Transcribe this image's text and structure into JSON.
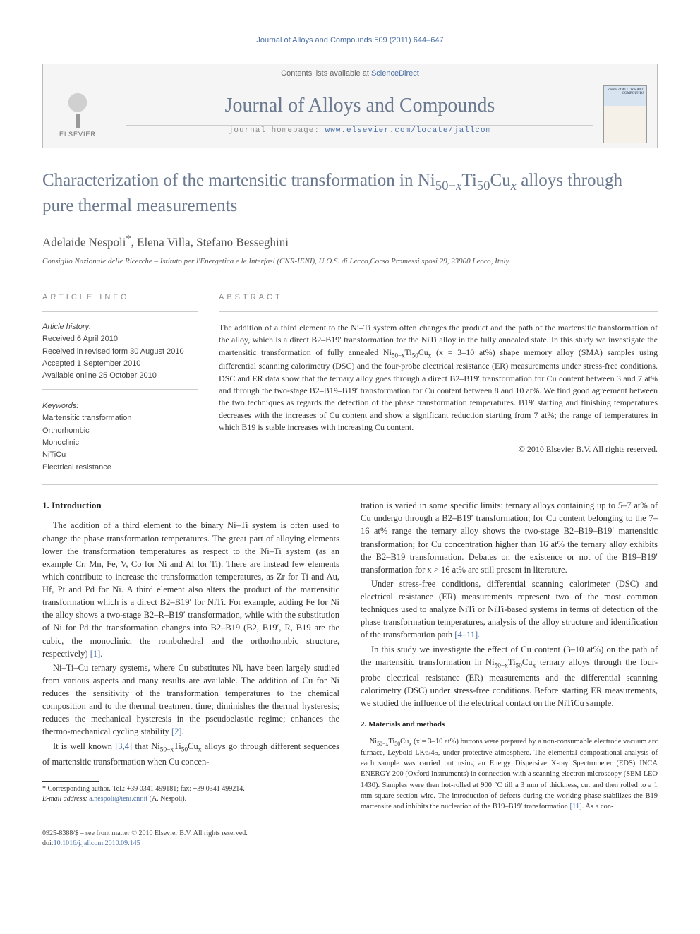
{
  "running_header": "Journal of Alloys and Compounds 509 (2011) 644–647",
  "masthead": {
    "contents_line_prefix": "Contents lists available at ",
    "contents_link": "ScienceDirect",
    "journal_title": "Journal of Alloys and Compounds",
    "homepage_prefix": "journal homepage: ",
    "homepage_url": "www.elsevier.com/locate/jallcom",
    "publisher": "ELSEVIER",
    "cover_label": "Journal of\nALLOYS AND\nCOMPOUNDS"
  },
  "article": {
    "title_html": "Characterization of the martensitic transformation in Ni<sub>50−<i>x</i></sub>Ti<sub>50</sub>Cu<sub><i>x</i></sub> alloys through pure thermal measurements",
    "authors_html": "Adelaide Nespoli<sup>*</sup>, Elena Villa, Stefano Besseghini",
    "affiliation": "Consiglio Nazionale delle Ricerche – Istituto per l'Energetica e le Interfasi (CNR-IENI), U.O.S. di Lecco,Corso Promessi sposi 29, 23900 Lecco, Italy"
  },
  "info": {
    "label": "article info",
    "history_head": "Article history:",
    "received": "Received 6 April 2010",
    "revised": "Received in revised form 30 August 2010",
    "accepted": "Accepted 1 September 2010",
    "online": "Available online 25 October 2010",
    "keywords_head": "Keywords:",
    "keywords": [
      "Martensitic transformation",
      "Orthorhombic",
      "Monoclinic",
      "NiTiCu",
      "Electrical resistance"
    ]
  },
  "abstract": {
    "label": "abstract",
    "text_html": "The addition of a third element to the Ni–Ti system often changes the product and the path of the martensitic transformation of the alloy, which is a direct B2–B19′ transformation for the NiTi alloy in the fully annealed state. In this study we investigate the martensitic transformation of fully annealed Ni<sub>50−x</sub>Ti<sub>50</sub>Cu<sub>x</sub> (x = 3–10 at%) shape memory alloy (SMA) samples using differential scanning calorimetry (DSC) and the four-probe electrical resistance (ER) measurements under stress-free conditions. DSC and ER data show that the ternary alloy goes through a direct B2–B19′ transformation for Cu content between 3 and 7 at% and through the two-stage B2–B19–B19′ transformation for Cu content between 8 and 10 at%. We find good agreement between the two techniques as regards the detection of the phase transformation temperatures. B19′ starting and finishing temperatures decreases with the increases of Cu content and show a significant reduction starting from 7 at%; the range of temperatures in which B19 is stable increases with increasing Cu content.",
    "copyright": "© 2010 Elsevier B.V. All rights reserved."
  },
  "sections": {
    "intro_head": "1. Introduction",
    "intro_p1_html": "The addition of a third element to the binary Ni–Ti system is often used to change the phase transformation temperatures. The great part of alloying elements lower the transformation temperatures as respect to the Ni–Ti system (as an example Cr, Mn, Fe, V, Co for Ni and Al for Ti). There are instead few elements which contribute to increase the transformation temperatures, as Zr for Ti and Au, Hf, Pt and Pd for Ni. A third element also alters the product of the martensitic transformation which is a direct B2–B19′ for NiTi. For example, adding Fe for Ni the alloy shows a two-stage B2–R–B19′ transformation, while with the substitution of Ni for Pd the transformation changes into B2–B19 (B2, B19′, R, B19 are the cubic, the monoclinic, the rombohedral and the orthorhombic structure, respectively) <a class=\"ref-link\" href=\"#\">[1]</a>.",
    "intro_p2_html": "Ni–Ti–Cu ternary systems, where Cu substitutes Ni, have been largely studied from various aspects and many results are available. The addition of Cu for Ni reduces the sensitivity of the transformation temperatures to the chemical composition and to the thermal treatment time; diminishes the thermal hysteresis; reduces the mechanical hysteresis in the pseudoelastic regime; enhances the thermo-mechanical cycling stability <a class=\"ref-link\" href=\"#\">[2]</a>.",
    "intro_p3_html": "It is well known <a class=\"ref-link\" href=\"#\">[3,4]</a> that Ni<sub>50−x</sub>Ti<sub>50</sub>Cu<sub>x</sub> alloys go through different sequences of martensitic transformation when Cu concen-",
    "intro_p4_html": "tration is varied in some specific limits: ternary alloys containing up to 5–7 at% of Cu undergo through a B2–B19′ transformation; for Cu content belonging to the 7–16 at% range the ternary alloy shows the two-stage B2–B19–B19′ martensitic transformation; for Cu concentration higher than 16 at% the ternary alloy exhibits the B2–B19 transformation. Debates on the existence or not of the B19–B19′ transformation for x > 16 at% are still present in literature.",
    "intro_p5_html": "Under stress-free conditions, differential scanning calorimeter (DSC) and electrical resistance (ER) measurements represent two of the most common techniques used to analyze NiTi or NiTi-based systems in terms of detection of the phase transformation temperatures, analysis of the alloy structure and identification of the transformation path <a class=\"ref-link\" href=\"#\">[4–11]</a>.",
    "intro_p6_html": "In this study we investigate the effect of Cu content (3–10 at%) on the path of the martensitic transformation in Ni<sub>50−x</sub>Ti<sub>50</sub>Cu<sub>x</sub> ternary alloys through the four-probe electrical resistance (ER) measurements and the differential scanning calorimetry (DSC) under stress-free conditions. Before starting ER measurements, we studied the influence of the electrical contact on the NiTiCu sample.",
    "methods_head": "2. Materials and methods",
    "methods_p1_html": "Ni<sub>50−x</sub>Ti<sub>50</sub>Cu<sub>x</sub> (x = 3–10 at%) buttons were prepared by a non-consumable electrode vacuum arc furnace, Leybold LK6/45, under protective atmosphere. The elemental compositional analysis of each sample was carried out using an Energy Dispersive X-ray Spectrometer (EDS) INCA ENERGY 200 (Oxford Instruments) in connection with a scanning electron microscopy (SEM LEO 1430). Samples were then hot-rolled at 900 °C till a 3 mm of thickness, cut and then rolled to a 1 mm square section wire. The introduction of defects during the working phase stabilizes the B19 martensite and inhibits the nucleation of the B19–B19′ transformation <a class=\"ref-link\" href=\"#\">[11]</a>. As a con-"
  },
  "footnote": {
    "corr_html": "* Corresponding author. Tel.: +39 0341 499181; fax: +39 0341 499214.",
    "email_label": "E-mail address: ",
    "email": "a.nespoli@ieni.cnr.it",
    "email_suffix": " (A. Nespoli)."
  },
  "footer": {
    "issn_line": "0925-8388/$ – see front matter © 2010 Elsevier B.V. All rights reserved.",
    "doi_prefix": "doi:",
    "doi": "10.1016/j.jallcom.2010.09.145"
  },
  "colors": {
    "link": "#4a6fa5",
    "heading": "#6b7a8f"
  }
}
